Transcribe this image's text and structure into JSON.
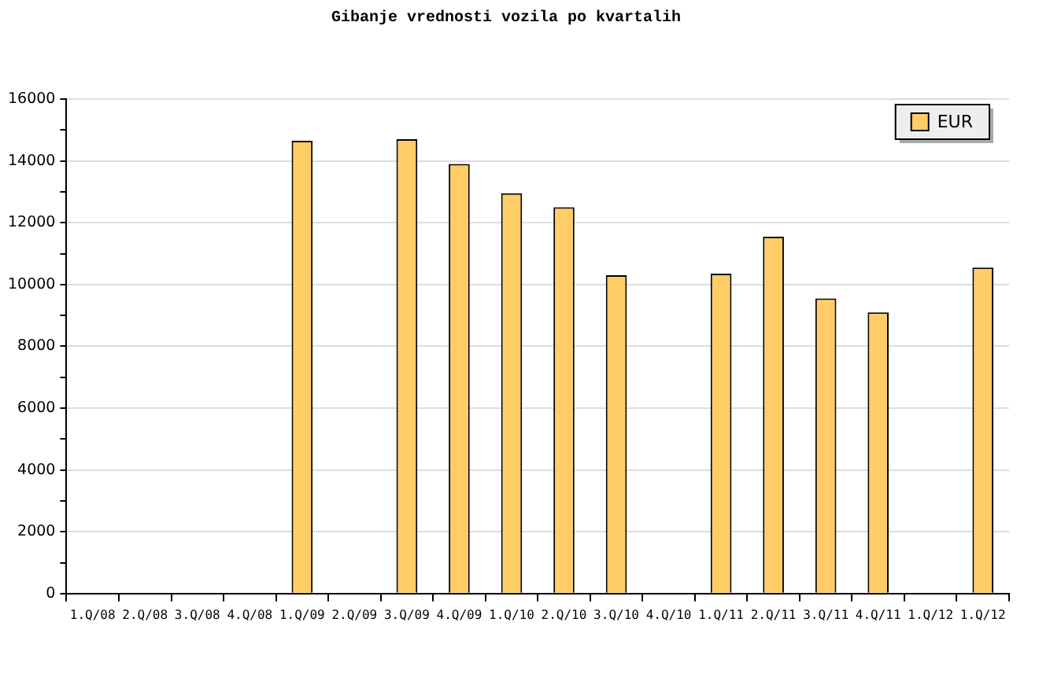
{
  "chart_data": {
    "type": "bar",
    "title": "Gibanje vrednosti vozila po kvartalih",
    "categories": [
      "1.Q/08",
      "2.Q/08",
      "3.Q/08",
      "4.Q/08",
      "1.Q/09",
      "2.Q/09",
      "3.Q/09",
      "4.Q/09",
      "1.Q/10",
      "2.Q/10",
      "3.Q/10",
      "4.Q/10",
      "1.Q/11",
      "2.Q/11",
      "3.Q/11",
      "4.Q/11",
      "1.Q/12",
      "1.Q/12"
    ],
    "series": [
      {
        "name": "EUR",
        "color": "#ffcc66",
        "values": [
          null,
          null,
          null,
          null,
          14650,
          null,
          14700,
          13900,
          12950,
          12500,
          10300,
          null,
          10350,
          11550,
          9550,
          9100,
          null,
          10550
        ]
      }
    ],
    "ylim": [
      0,
      16000
    ],
    "yticks": [
      0,
      {
        "value": 1000,
        "label": null
      },
      2000,
      {
        "value": 3000,
        "label": null
      },
      4000,
      {
        "value": 5000,
        "label": null
      },
      6000,
      {
        "value": 7000,
        "label": null
      },
      8000,
      {
        "value": 9000,
        "label": null
      },
      10000,
      {
        "value": 11000,
        "label": null
      },
      12000,
      {
        "value": 13000,
        "label": null
      },
      14000,
      {
        "value": 15000,
        "label": null
      },
      16000
    ],
    "grid": "y",
    "legend": "top right"
  }
}
